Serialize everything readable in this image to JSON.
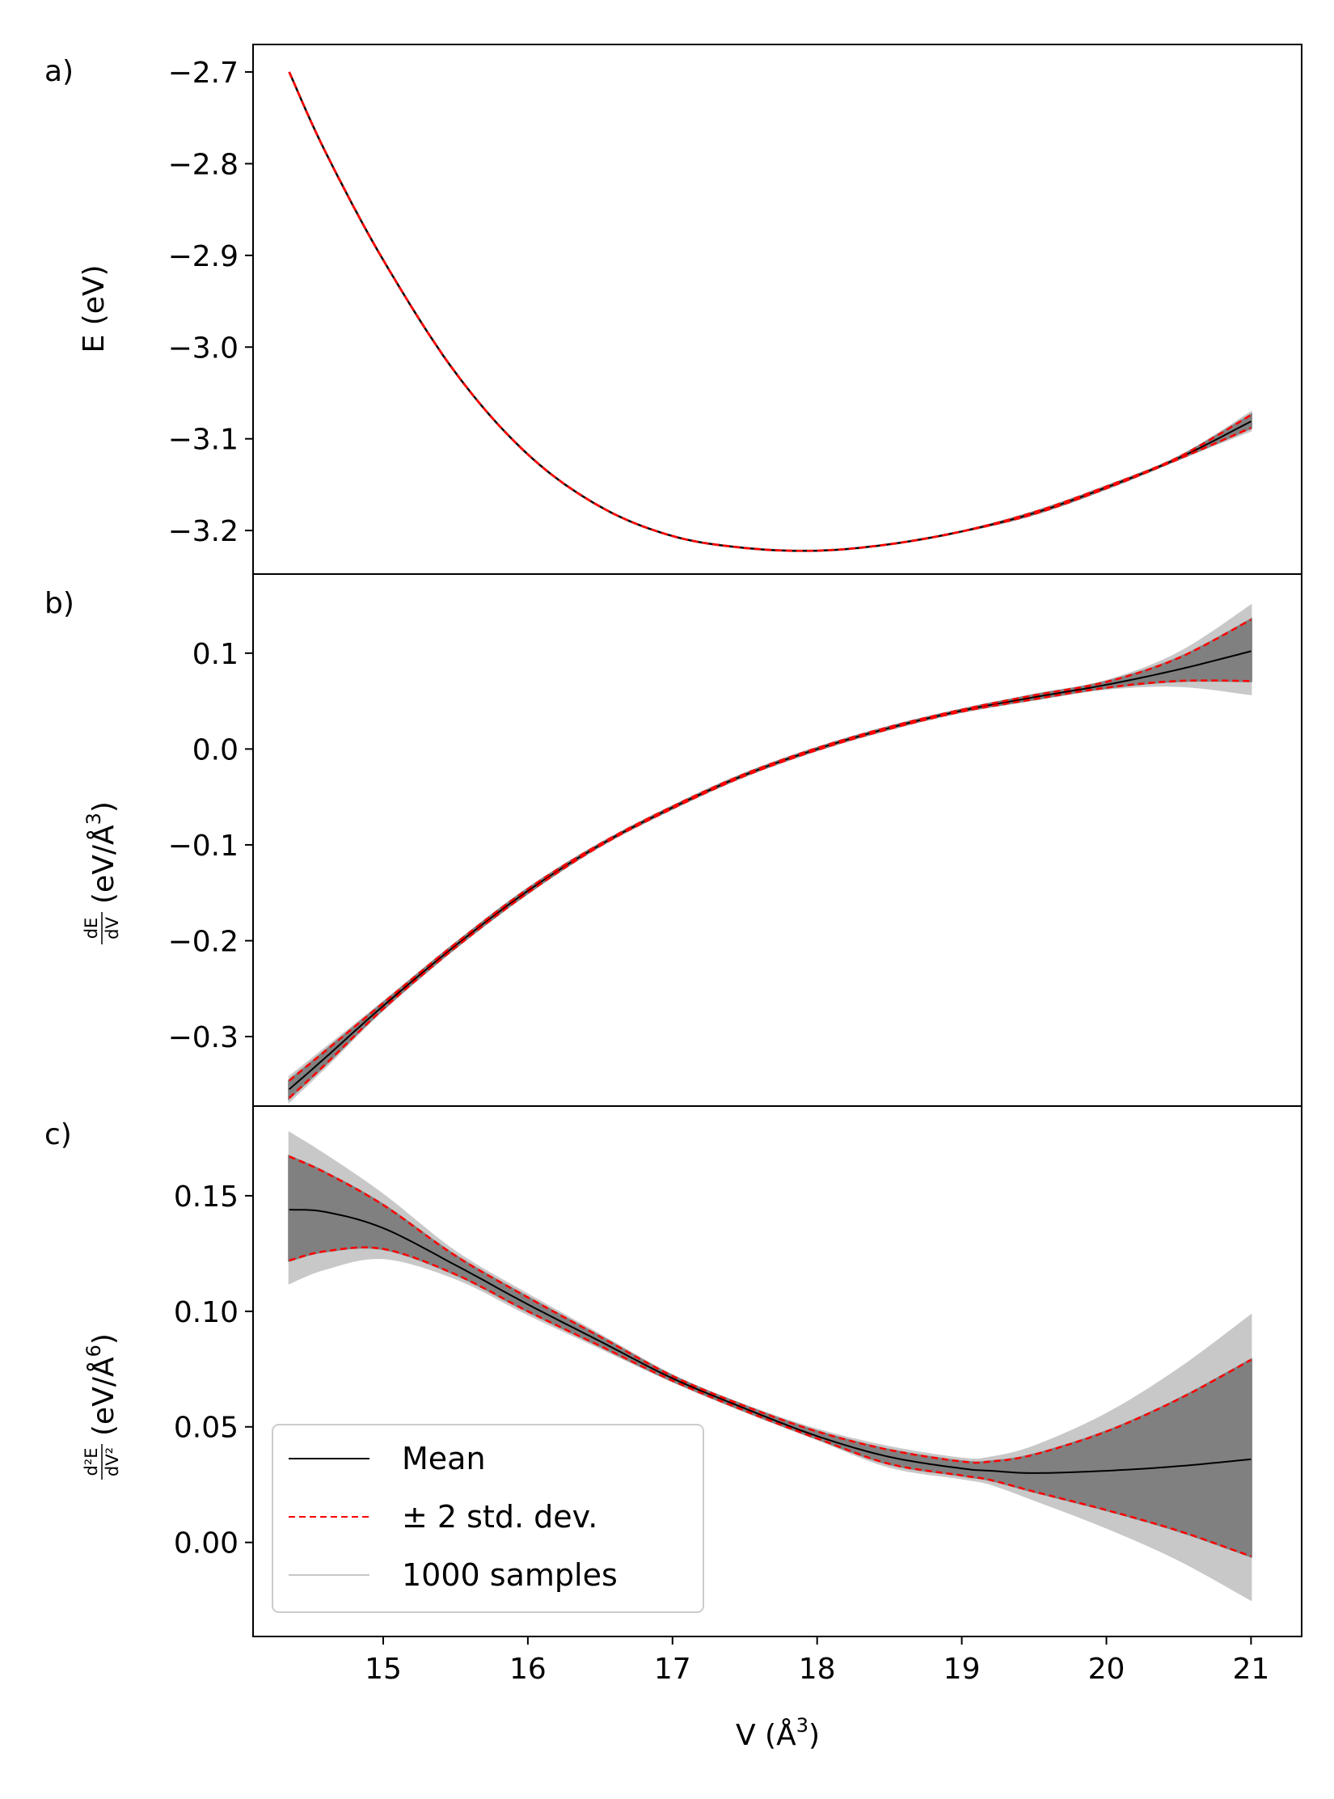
{
  "chart_data": [
    {
      "type": "line",
      "panel_label": "a)",
      "title": "",
      "xlabel": "",
      "ylabel": "E (eV)",
      "xlim": [
        14.1,
        21.35
      ],
      "ylim": [
        -3.2475,
        -2.67
      ],
      "yticks": [
        -2.7,
        -2.8,
        -2.9,
        -3.0,
        -3.1,
        -3.2
      ],
      "ytick_labels": [
        "−2.7",
        "−2.8",
        "−2.9",
        "−3.0",
        "−3.1",
        "−3.2"
      ],
      "x": [
        14.35,
        14.6,
        15.0,
        15.5,
        16.0,
        16.5,
        17.0,
        17.5,
        18.0,
        18.5,
        19.0,
        19.5,
        20.0,
        20.5,
        21.0
      ],
      "series": [
        {
          "name": "Mean",
          "values": [
            -2.7,
            -2.787,
            -2.905,
            -3.028,
            -3.117,
            -3.174,
            -3.206,
            -3.219,
            -3.222,
            -3.215,
            -3.201,
            -3.181,
            -3.153,
            -3.121,
            -3.081
          ],
          "upper": [
            -2.7,
            -2.787,
            -2.905,
            -3.028,
            -3.117,
            -3.174,
            -3.206,
            -3.219,
            -3.222,
            -3.215,
            -3.201,
            -3.18,
            -3.152,
            -3.12,
            -3.074
          ],
          "lower": [
            -2.7,
            -2.787,
            -2.905,
            -3.028,
            -3.117,
            -3.174,
            -3.206,
            -3.219,
            -3.222,
            -3.215,
            -3.201,
            -3.182,
            -3.154,
            -3.122,
            -3.088
          ]
        }
      ]
    },
    {
      "type": "line",
      "panel_label": "b)",
      "title": "",
      "xlabel": "",
      "ylabel_frac_num": "dE",
      "ylabel_frac_den": "dV",
      "ylabel_unit": "(eV/Å",
      "ylabel_sup": "3",
      "ylabel_close": ")",
      "xlim": [
        14.1,
        21.35
      ],
      "ylim": [
        -0.3725,
        0.1825
      ],
      "yticks": [
        0.1,
        0.0,
        -0.1,
        -0.2,
        -0.3
      ],
      "ytick_labels": [
        "0.1",
        "0.0",
        "−0.1",
        "−0.2",
        "−0.3"
      ],
      "x": [
        14.35,
        14.6,
        15.0,
        15.5,
        16.0,
        16.5,
        17.0,
        17.5,
        18.0,
        18.5,
        19.0,
        19.5,
        20.0,
        20.5,
        21.0
      ],
      "series": [
        {
          "name": "Mean",
          "values": [
            -0.355,
            -0.322,
            -0.268,
            -0.205,
            -0.148,
            -0.1,
            -0.061,
            -0.027,
            0.0,
            0.022,
            0.04,
            0.054,
            0.067,
            0.083,
            0.102
          ],
          "upper": [
            -0.346,
            -0.315,
            -0.265,
            -0.203,
            -0.146,
            -0.099,
            -0.06,
            -0.026,
            0.001,
            0.023,
            0.041,
            0.056,
            0.07,
            0.095,
            0.135
          ],
          "lower": [
            -0.364,
            -0.329,
            -0.271,
            -0.207,
            -0.15,
            -0.101,
            -0.062,
            -0.028,
            -0.001,
            0.021,
            0.039,
            0.052,
            0.064,
            0.071,
            0.071
          ]
        }
      ]
    },
    {
      "type": "line",
      "panel_label": "c)",
      "title": "",
      "xlabel": "V (Å",
      "xlabel_sup": "3",
      "xlabel_close": ")",
      "ylabel_frac_num": "d²E",
      "ylabel_frac_den": "dV²",
      "ylabel_unit": "(eV/Å",
      "ylabel_sup": "6",
      "ylabel_close": ")",
      "xlim": [
        14.1,
        21.35
      ],
      "ylim": [
        -0.0407,
        0.1888
      ],
      "xticks": [
        15,
        16,
        17,
        18,
        19,
        20,
        21
      ],
      "xtick_labels": [
        "15",
        "16",
        "17",
        "18",
        "19",
        "20",
        "21"
      ],
      "yticks": [
        0.15,
        0.1,
        0.05,
        0.0
      ],
      "ytick_labels": [
        "0.15",
        "0.10",
        "0.05",
        "0.00"
      ],
      "x": [
        14.35,
        14.6,
        15.0,
        15.5,
        16.0,
        16.5,
        17.0,
        17.5,
        18.0,
        18.5,
        19.0,
        19.2,
        19.5,
        20.0,
        20.5,
        21.0
      ],
      "series": [
        {
          "name": "Mean",
          "values": [
            0.144,
            0.143,
            0.136,
            0.12,
            0.103,
            0.087,
            0.071,
            0.058,
            0.046,
            0.037,
            0.032,
            0.031,
            0.03,
            0.031,
            0.033,
            0.036
          ],
          "upper": [
            0.167,
            0.16,
            0.146,
            0.124,
            0.106,
            0.089,
            0.072,
            0.059,
            0.048,
            0.04,
            0.035,
            0.035,
            0.038,
            0.048,
            0.062,
            0.079
          ],
          "lower": [
            0.122,
            0.126,
            0.127,
            0.116,
            0.1,
            0.085,
            0.07,
            0.057,
            0.045,
            0.034,
            0.029,
            0.027,
            0.022,
            0.014,
            0.005,
            -0.006
          ]
        }
      ]
    }
  ],
  "legend": {
    "placement": "lower-left",
    "items": [
      {
        "label": "Mean",
        "color": "#000000",
        "style": "solid"
      },
      {
        "label": "± 2 std. dev.",
        "color": "#ff0000",
        "style": "dashed"
      },
      {
        "label": "1000 samples",
        "color": "#c8c8c8",
        "style": "solid"
      }
    ]
  },
  "colors": {
    "mean": "#000000",
    "std": "#ff0000",
    "samples_band": "#808080",
    "sample_line": "#c8c8c8"
  }
}
